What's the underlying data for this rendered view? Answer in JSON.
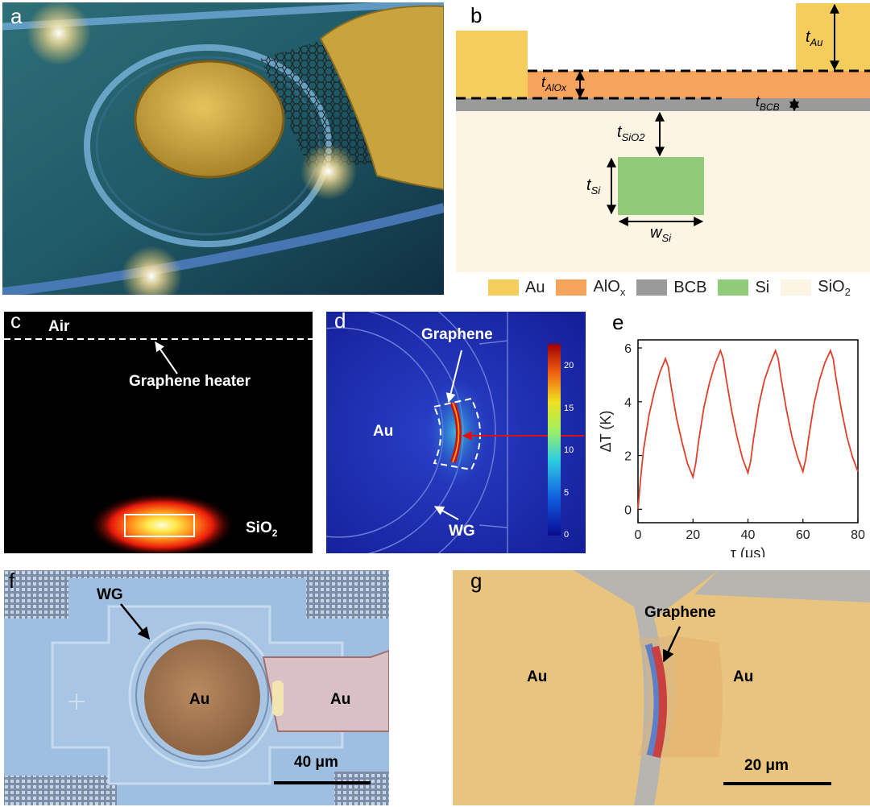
{
  "panels": {
    "a": {
      "label": "a"
    },
    "b": {
      "label": "b",
      "dims": {
        "t_au": "t",
        "t_au_sub": "Au",
        "t_alox": "t",
        "t_alox_sub": "AlOx",
        "t_bcb": "t",
        "t_bcb_sub": "BCB",
        "t_sio2": "t",
        "t_sio2_sub": "SiO2",
        "t_si": "t",
        "t_si_sub": "Si",
        "w_si": "w",
        "w_si_sub": "Si"
      },
      "legend": [
        {
          "name": "Au",
          "sub": "",
          "color": "#f5cd5c"
        },
        {
          "name": "AlO",
          "sub": "x",
          "color": "#f6a35c"
        },
        {
          "name": "BCB",
          "sub": "",
          "color": "#9a9a9a"
        },
        {
          "name": "Si",
          "sub": "",
          "color": "#8fcb78"
        },
        {
          "name": "SiO",
          "sub": "2",
          "color": "#fdf5e4"
        }
      ]
    },
    "c": {
      "label": "c",
      "air": "Air",
      "heater": "Graphene heater",
      "sio2": "SiO",
      "sio2_sub": "2"
    },
    "d": {
      "label": "d",
      "graphene": "Graphene",
      "au": "Au",
      "wg": "WG",
      "colorbar_ticks": [
        "20",
        "15",
        "10",
        "5",
        "0"
      ]
    },
    "e": {
      "label": "e"
    },
    "f": {
      "label": "f",
      "wg": "WG",
      "au_left": "Au",
      "au_right": "Au",
      "scalebar": "40 μm"
    },
    "g": {
      "label": "g",
      "graphene": "Graphene",
      "au_left": "Au",
      "au_right": "Au",
      "scalebar": "20 μm"
    }
  },
  "chart_data": {
    "type": "line",
    "xlabel": "τ (μs)",
    "ylabel": "ΔT (K)",
    "xlim": [
      0,
      80
    ],
    "ylim": [
      -0.5,
      6.3
    ],
    "xticks": [
      "0",
      "20",
      "40",
      "60",
      "80"
    ],
    "yticks": [
      "0",
      "2",
      "4",
      "6"
    ],
    "color": "#e0402a",
    "series": [
      {
        "x": [
          0,
          1,
          2,
          4,
          6,
          8,
          10,
          11,
          12,
          14,
          16,
          18,
          20,
          21,
          22,
          24,
          26,
          28,
          30,
          31,
          32,
          34,
          36,
          38,
          40,
          41,
          42,
          44,
          46,
          48,
          50,
          51,
          52,
          54,
          56,
          58,
          60,
          61,
          62,
          64,
          66,
          68,
          70,
          71,
          72,
          74,
          76,
          78,
          80
        ],
        "y": [
          0,
          1.2,
          2.2,
          3.5,
          4.4,
          5.1,
          5.6,
          5.3,
          4.6,
          3.4,
          2.5,
          1.7,
          1.2,
          1.7,
          2.5,
          3.8,
          4.7,
          5.4,
          5.9,
          5.6,
          4.9,
          3.7,
          2.7,
          1.9,
          1.35,
          1.8,
          2.6,
          3.9,
          4.8,
          5.4,
          5.9,
          5.6,
          4.9,
          3.7,
          2.7,
          1.95,
          1.4,
          1.85,
          2.6,
          3.9,
          4.8,
          5.45,
          5.9,
          5.6,
          4.9,
          3.7,
          2.7,
          1.95,
          1.4
        ]
      }
    ]
  }
}
